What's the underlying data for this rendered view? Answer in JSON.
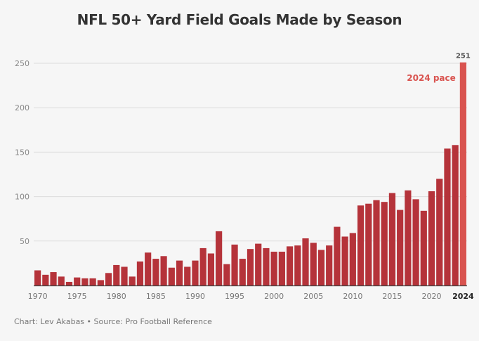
{
  "chart_data": {
    "type": "bar",
    "title": "NFL 50+ Yard Field Goals Made by Season",
    "xlabel": "",
    "ylabel": "",
    "ylim": [
      0,
      250
    ],
    "yticks": [
      50,
      100,
      150,
      200,
      250
    ],
    "xticks": [
      "1970",
      "1975",
      "1980",
      "1985",
      "1990",
      "1995",
      "2000",
      "2005",
      "2010",
      "2015",
      "2020",
      "2024"
    ],
    "highlight_tick": "2024",
    "grid": true,
    "categories": [
      "1970",
      "1971",
      "1972",
      "1973",
      "1974",
      "1975",
      "1976",
      "1977",
      "1978",
      "1979",
      "1980",
      "1981",
      "1982",
      "1983",
      "1984",
      "1985",
      "1986",
      "1987",
      "1988",
      "1989",
      "1990",
      "1991",
      "1992",
      "1993",
      "1994",
      "1995",
      "1996",
      "1997",
      "1998",
      "1999",
      "2000",
      "2001",
      "2002",
      "2003",
      "2004",
      "2005",
      "2006",
      "2007",
      "2008",
      "2009",
      "2010",
      "2011",
      "2012",
      "2013",
      "2014",
      "2015",
      "2016",
      "2017",
      "2018",
      "2019",
      "2020",
      "2021",
      "2022",
      "2023",
      "2024"
    ],
    "values": [
      17,
      12,
      15,
      10,
      4,
      9,
      8,
      8,
      6,
      14,
      23,
      21,
      10,
      27,
      37,
      30,
      33,
      20,
      28,
      21,
      28,
      42,
      36,
      61,
      24,
      46,
      30,
      41,
      47,
      42,
      38,
      38,
      44,
      45,
      53,
      48,
      40,
      45,
      66,
      55,
      59,
      90,
      92,
      96,
      94,
      104,
      85,
      107,
      97,
      84,
      106,
      120,
      154,
      158,
      251
    ],
    "bar_color": "#b5333a",
    "projected_color": "#d9534f",
    "value_label": "251",
    "annotation": "2024 pace"
  },
  "footer": "Chart: Lev Akabas • Source: Pro Football Reference"
}
